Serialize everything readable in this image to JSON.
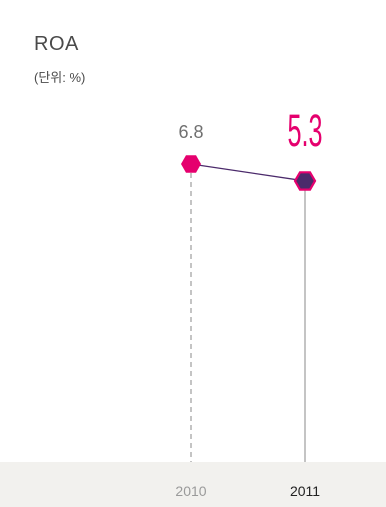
{
  "header": {
    "title": "ROA",
    "unit": "(단위: %)"
  },
  "chart_data": {
    "type": "line",
    "title": "ROA",
    "subtitle": "(단위: %)",
    "categories": [
      "2010",
      "2011"
    ],
    "series": [
      {
        "values": [
          6.8,
          5.3
        ]
      }
    ],
    "value_labels": [
      "6.8",
      "5.3"
    ],
    "colors": {
      "line": "#4b2a6b",
      "marker_2010": "#e5006e",
      "marker_2011_fill": "#4b2a6b",
      "marker_2011_outline": "#e5006e",
      "highlight_label": "#e5006e",
      "normal_label": "#707070",
      "axis_label_2010": "#9a9a9a",
      "axis_label_2011": "#222222"
    },
    "grid": false,
    "legend": "none"
  }
}
